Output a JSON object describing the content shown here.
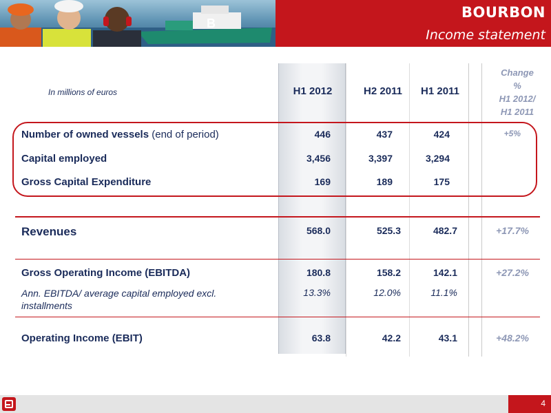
{
  "header": {
    "brand": "BOURBON",
    "subtitle": "Income statement"
  },
  "table": {
    "units_label": "In millions of euros",
    "columns": [
      "H1 2012",
      "H2 2011",
      "H1 2011"
    ],
    "change_header": [
      "Change",
      "%",
      "H1 2012/",
      "H1 2011"
    ],
    "rows": {
      "vessels": {
        "label_bold": "Number of owned vessels",
        "label_rest": " (end of period)",
        "values": [
          "446",
          "437",
          "424"
        ],
        "change": "+5%"
      },
      "capital": {
        "label": "Capital employed",
        "values": [
          "3,456",
          "3,397",
          "3,294"
        ],
        "change": ""
      },
      "capex": {
        "label": "Gross Capital Expenditure",
        "values": [
          "169",
          "189",
          "175"
        ],
        "change": ""
      },
      "revenues": {
        "label": "Revenues",
        "values": [
          "568.0",
          "525.3",
          "482.7"
        ],
        "change": "+17.7%"
      },
      "ebitda": {
        "label": "Gross Operating Income (EBITDA)",
        "values": [
          "180.8",
          "158.2",
          "142.1"
        ],
        "change": "+27.2%"
      },
      "ann_ebitda": {
        "label_line1": "Ann. EBITDA/ average capital employed excl.",
        "label_line2": "installments",
        "values": [
          "13.3%",
          "12.0%",
          "11.1%"
        ]
      },
      "ebit": {
        "label": "Operating Income (EBIT)",
        "values": [
          "63.8",
          "42.2",
          "43.1"
        ],
        "change": "+48.2%"
      }
    }
  },
  "footer": {
    "page_number": "4"
  },
  "colors": {
    "brand_red": "#c4161c",
    "navy_text": "#1a2b5a",
    "change_text": "#8d97b5"
  }
}
